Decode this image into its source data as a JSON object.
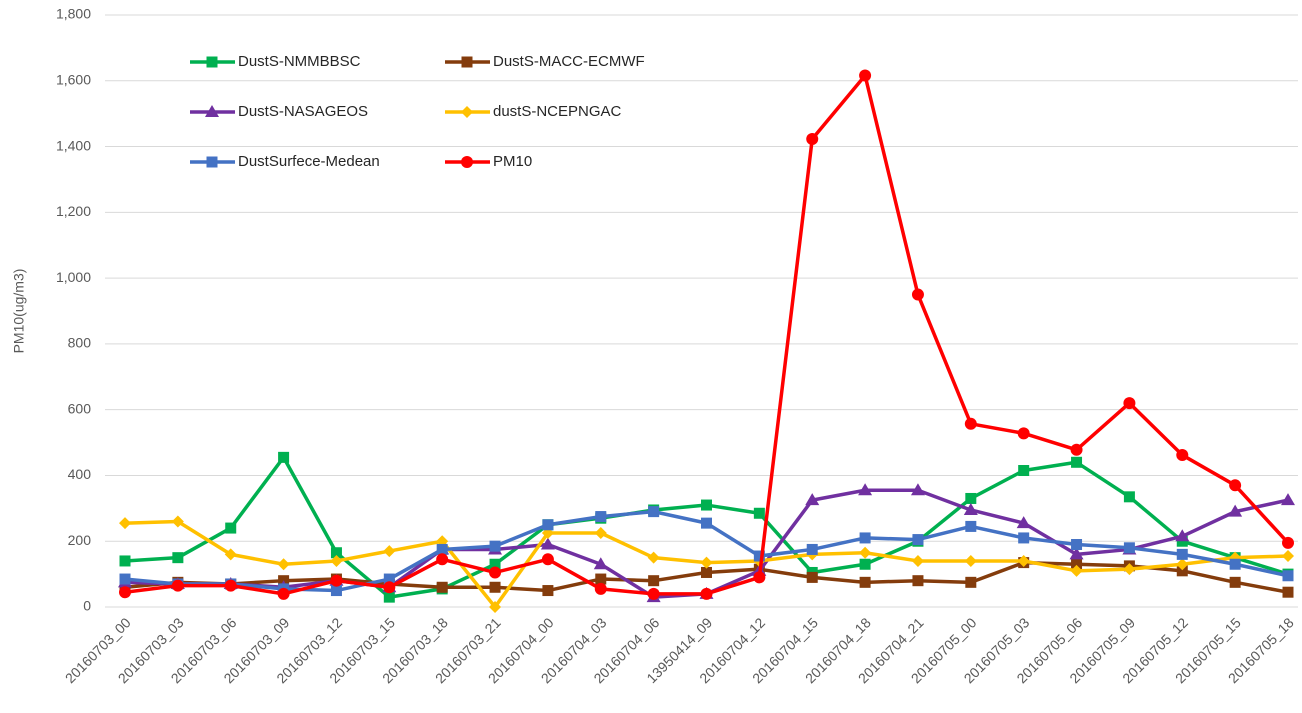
{
  "chart_data": {
    "type": "line",
    "y_label": "PM10(ug/m3)",
    "categories": [
      "20160703_00",
      "20160703_03",
      "20160703_06",
      "20160703_09",
      "20160703_12",
      "20160703_15",
      "20160703_18",
      "20160703_21",
      "20160704_00",
      "20160704_03",
      "20160704_06",
      "13950414_09",
      "20160704_12",
      "20160704_15",
      "20160704_18",
      "20160704_21",
      "20160705_00",
      "20160705_03",
      "20160705_06",
      "20160705_09",
      "20160705_12",
      "20160705_15",
      "20160705_18"
    ],
    "series": [
      {
        "name": "DustS-NMMBBSC",
        "color": "#00b050",
        "marker": "square",
        "values": [
          140,
          150,
          240,
          455,
          165,
          30,
          55,
          130,
          250,
          270,
          295,
          310,
          285,
          105,
          130,
          200,
          330,
          415,
          440,
          335,
          200,
          150,
          100
        ]
      },
      {
        "name": "DustS-MACC-ECMWF",
        "color": "#843c0c",
        "marker": "square",
        "values": [
          60,
          75,
          70,
          80,
          85,
          70,
          60,
          60,
          50,
          85,
          80,
          105,
          115,
          90,
          75,
          80,
          75,
          135,
          130,
          125,
          110,
          75,
          45
        ]
      },
      {
        "name": "DustS-NASAGEOS",
        "color": "#7030a0",
        "marker": "triangle",
        "values": [
          75,
          70,
          70,
          60,
          80,
          60,
          175,
          175,
          190,
          130,
          30,
          40,
          110,
          325,
          355,
          355,
          295,
          255,
          160,
          175,
          215,
          290,
          325
        ]
      },
      {
        "name": "dustS-NCEPNGAC",
        "color": "#ffc000",
        "marker": "diamond",
        "values": [
          255,
          260,
          160,
          130,
          140,
          170,
          200,
          0,
          225,
          225,
          150,
          135,
          140,
          160,
          165,
          140,
          140,
          140,
          110,
          115,
          130,
          150,
          155
        ]
      },
      {
        "name": "DustSurfece-Medean",
        "color": "#4472c4",
        "marker": "square",
        "values": [
          85,
          70,
          70,
          55,
          50,
          85,
          175,
          185,
          250,
          275,
          290,
          255,
          155,
          175,
          210,
          205,
          245,
          210,
          190,
          180,
          160,
          130,
          95
        ]
      },
      {
        "name": "PM10",
        "color": "#ff0000",
        "marker": "circle",
        "values": [
          45,
          65,
          65,
          40,
          80,
          60,
          145,
          105,
          145,
          55,
          40,
          40,
          90,
          1423,
          1616,
          950,
          557,
          528,
          478,
          620,
          462,
          370,
          195
        ]
      }
    ],
    "ylim": [
      0,
      1800
    ],
    "yticks": [
      0,
      200,
      400,
      600,
      800,
      {
        "value": 1000,
        "label": "1,000"
      },
      {
        "value": 1200,
        "label": "1,200"
      },
      {
        "value": 1400,
        "label": "1,400"
      },
      {
        "value": 1600,
        "label": "1,600"
      },
      {
        "value": 1800,
        "label": "1,800"
      }
    ],
    "grid": true
  }
}
